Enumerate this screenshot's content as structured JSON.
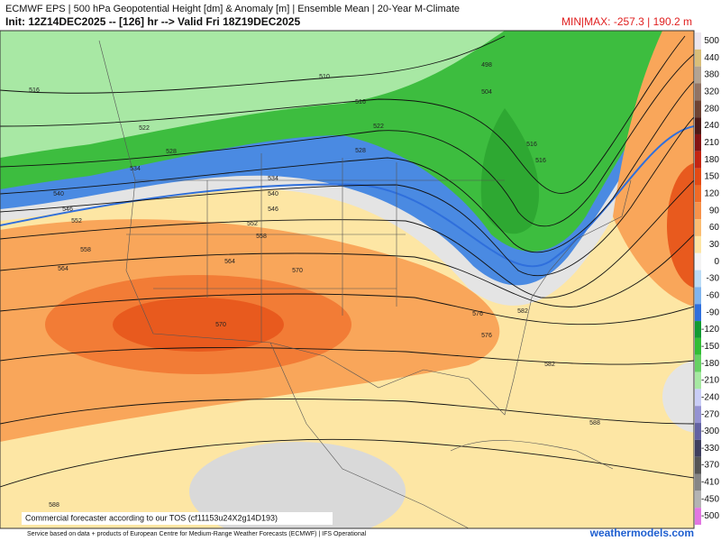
{
  "header": {
    "title": "ECMWF EPS | 500 hPa Geopotential Height [dm] & Anomaly [m] | Ensemble Mean | 20-Year M-Climate",
    "subtitle": "Init: 12Z14DEC2025 -- [126] hr --> Valid Fri 18Z19DEC2025",
    "minmax": "MIN|MAX: -257.3 | 190.2 m"
  },
  "colorbar": [
    {
      "value": 500,
      "color": "#ece6ee"
    },
    {
      "value": 440,
      "color": "#d9bf7a"
    },
    {
      "value": 380,
      "color": "#b3a392"
    },
    {
      "value": 320,
      "color": "#917364"
    },
    {
      "value": 280,
      "color": "#6e4333"
    },
    {
      "value": 240,
      "color": "#4e1a16"
    },
    {
      "value": 210,
      "color": "#851414"
    },
    {
      "value": 180,
      "color": "#c42512"
    },
    {
      "value": 150,
      "color": "#e34a14"
    },
    {
      "value": 120,
      "color": "#f06a26"
    },
    {
      "value": 90,
      "color": "#f7924a"
    },
    {
      "value": 60,
      "color": "#fbbd72"
    },
    {
      "value": 30,
      "color": "#fde6a4"
    },
    {
      "value": 0,
      "color": "#f4f4f4"
    },
    {
      "value": -30,
      "color": "#bcdcf6"
    },
    {
      "value": -60,
      "color": "#7fb4ee"
    },
    {
      "value": -90,
      "color": "#2f6fdc"
    },
    {
      "value": -120,
      "color": "#119a32"
    },
    {
      "value": -150,
      "color": "#32bd35"
    },
    {
      "value": -180,
      "color": "#66d163"
    },
    {
      "value": -210,
      "color": "#a6e8a2"
    },
    {
      "value": -240,
      "color": "#c9cdf6"
    },
    {
      "value": -270,
      "color": "#9492d2"
    },
    {
      "value": -300,
      "color": "#6261a2"
    },
    {
      "value": -330,
      "color": "#3f3f5e"
    },
    {
      "value": -370,
      "color": "#555555"
    },
    {
      "value": -410,
      "color": "#858585"
    },
    {
      "value": -450,
      "color": "#b3b3b3"
    },
    {
      "value": -500,
      "color": "#e276e2"
    }
  ],
  "contour_labels": [
    "516",
    "522",
    "528",
    "534",
    "540",
    "546",
    "552",
    "558",
    "564",
    "570",
    "576",
    "582",
    "588",
    "510",
    "504",
    "516",
    "522",
    "528",
    "534",
    "540",
    "546",
    "552",
    "558",
    "564",
    "570",
    "576",
    "582",
    "588",
    "516",
    "516",
    "498"
  ],
  "notice": "Commercial forecaster according to our TOS (cf11153u24X2g14D193)",
  "footer": {
    "credit": "Service based on data + products of European Centre for Medium-Range Weather Forecasts (ECMWF) | IFS Operational",
    "brand": "weathermodels.com"
  }
}
